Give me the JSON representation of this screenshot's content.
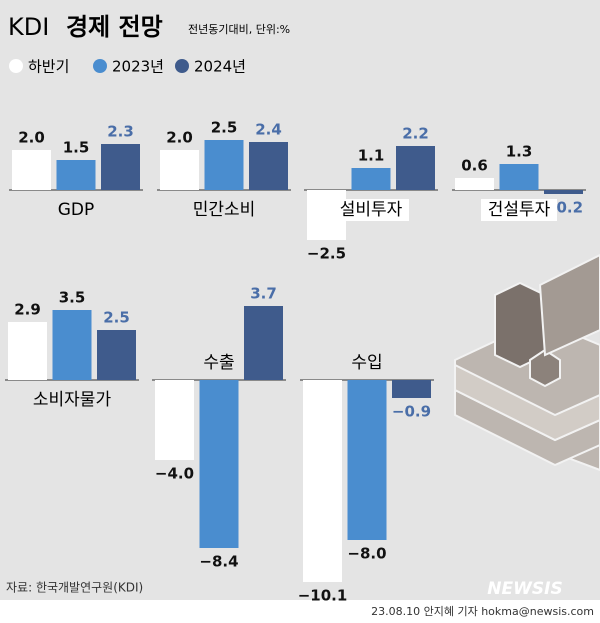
{
  "brand": "KDI",
  "title": "경제 전망",
  "subtitle": "전년동기대비, 단위:%",
  "legend": [
    {
      "name": "하반기",
      "color": "#ffffff"
    },
    {
      "name": "2023년",
      "color": "#4a8dcf"
    },
    {
      "name": "2024년",
      "color": "#3f5b8c"
    }
  ],
  "chart_data": [
    {
      "type": "bar",
      "title": "GDP",
      "values": [
        2.0,
        1.5,
        2.3
      ],
      "value_labels": [
        "2.0",
        "1.5",
        "2.3"
      ]
    },
    {
      "type": "bar",
      "title": "민간소비",
      "values": [
        2.0,
        2.5,
        2.4
      ],
      "value_labels": [
        "2.0",
        "2.5",
        "2.4"
      ]
    },
    {
      "type": "bar",
      "title": "설비투자",
      "values": [
        -2.5,
        1.1,
        2.2
      ],
      "value_labels": [
        "−2.5",
        "1.1",
        "2.2"
      ]
    },
    {
      "type": "bar",
      "title": "건설투자",
      "values": [
        0.6,
        1.3,
        -0.2
      ],
      "value_labels": [
        "0.6",
        "1.3",
        "−0.2"
      ]
    },
    {
      "type": "bar",
      "title": "소비자물가",
      "values": [
        2.9,
        3.5,
        2.5
      ],
      "value_labels": [
        "2.9",
        "3.5",
        "2.5"
      ]
    },
    {
      "type": "bar",
      "title": "수출",
      "values": [
        -4.0,
        -8.4,
        3.7
      ],
      "value_labels": [
        "−4.0",
        "−8.4",
        "3.7"
      ]
    },
    {
      "type": "bar",
      "title": "수입",
      "values": [
        -10.1,
        -8.0,
        -0.9
      ],
      "value_labels": [
        "−10.1",
        "−8.0",
        "−0.9"
      ]
    }
  ],
  "source": "자료: 한국개발연구원(KDI)",
  "logo": "NEWSIS",
  "credit": "23.08.10 안지혜 기자 hokma@newsis.com"
}
